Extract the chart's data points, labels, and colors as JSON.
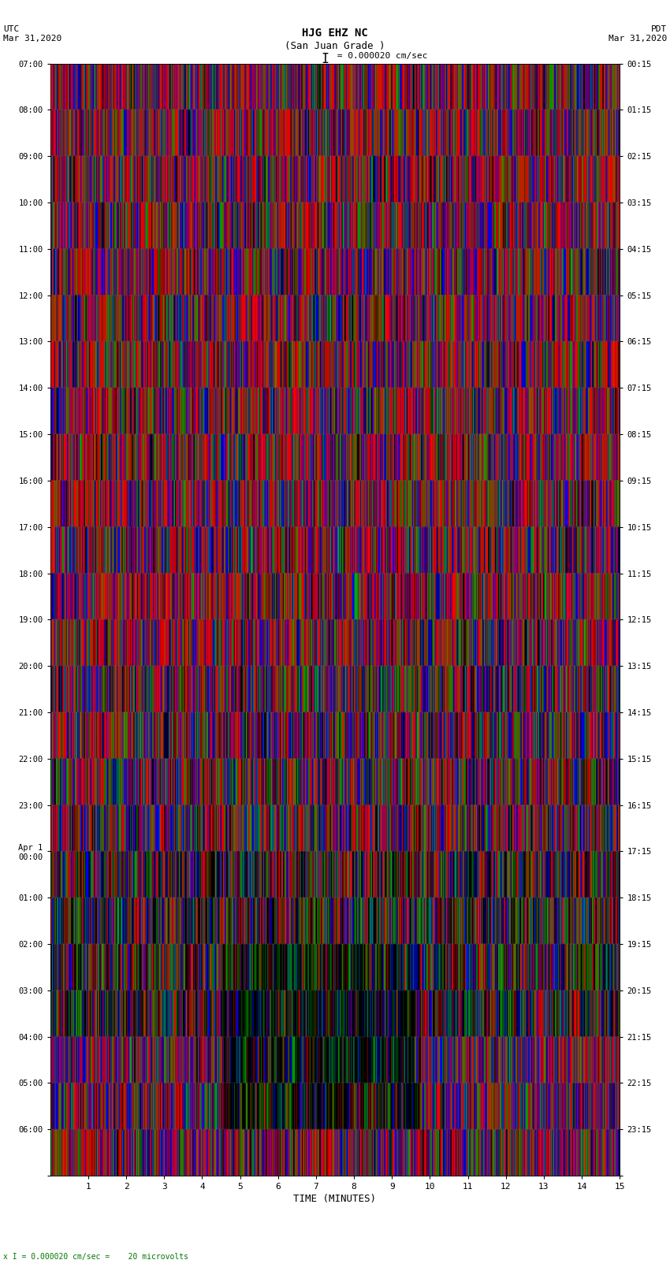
{
  "title_line1": "HJG EHZ NC",
  "title_line2": "(San Juan Grade )",
  "scale_text": "I = 0.000020 cm/sec",
  "left_header": "UTC\nMar 31,2020",
  "right_header": "PDT\nMar 31,2020",
  "bottom_label": "TIME (MINUTES)",
  "bottom_note": "x I = 0.000020 cm/sec =    20 microvolts",
  "utc_labels": [
    "07:00",
    "08:00",
    "09:00",
    "10:00",
    "11:00",
    "12:00",
    "13:00",
    "14:00",
    "15:00",
    "16:00",
    "17:00",
    "18:00",
    "19:00",
    "20:00",
    "21:00",
    "22:00",
    "23:00",
    "Apr 1\n00:00",
    "01:00",
    "02:00",
    "03:00",
    "04:00",
    "05:00",
    "06:00"
  ],
  "pdt_labels": [
    "00:15",
    "01:15",
    "02:15",
    "03:15",
    "04:15",
    "05:15",
    "06:15",
    "07:15",
    "08:15",
    "09:15",
    "10:15",
    "11:15",
    "12:15",
    "13:15",
    "14:15",
    "15:15",
    "16:15",
    "17:15",
    "18:15",
    "19:15",
    "20:15",
    "21:15",
    "22:15",
    "23:15"
  ],
  "x_ticks": [
    1,
    2,
    3,
    4,
    5,
    6,
    7,
    8,
    9,
    10,
    11,
    12,
    13,
    14,
    15
  ],
  "x_range": [
    0,
    15
  ],
  "fig_bg": "#ffffff",
  "font_color": "#000000",
  "font_family": "monospace",
  "n_rows": 24,
  "n_cols": 1500,
  "seed": 12345
}
